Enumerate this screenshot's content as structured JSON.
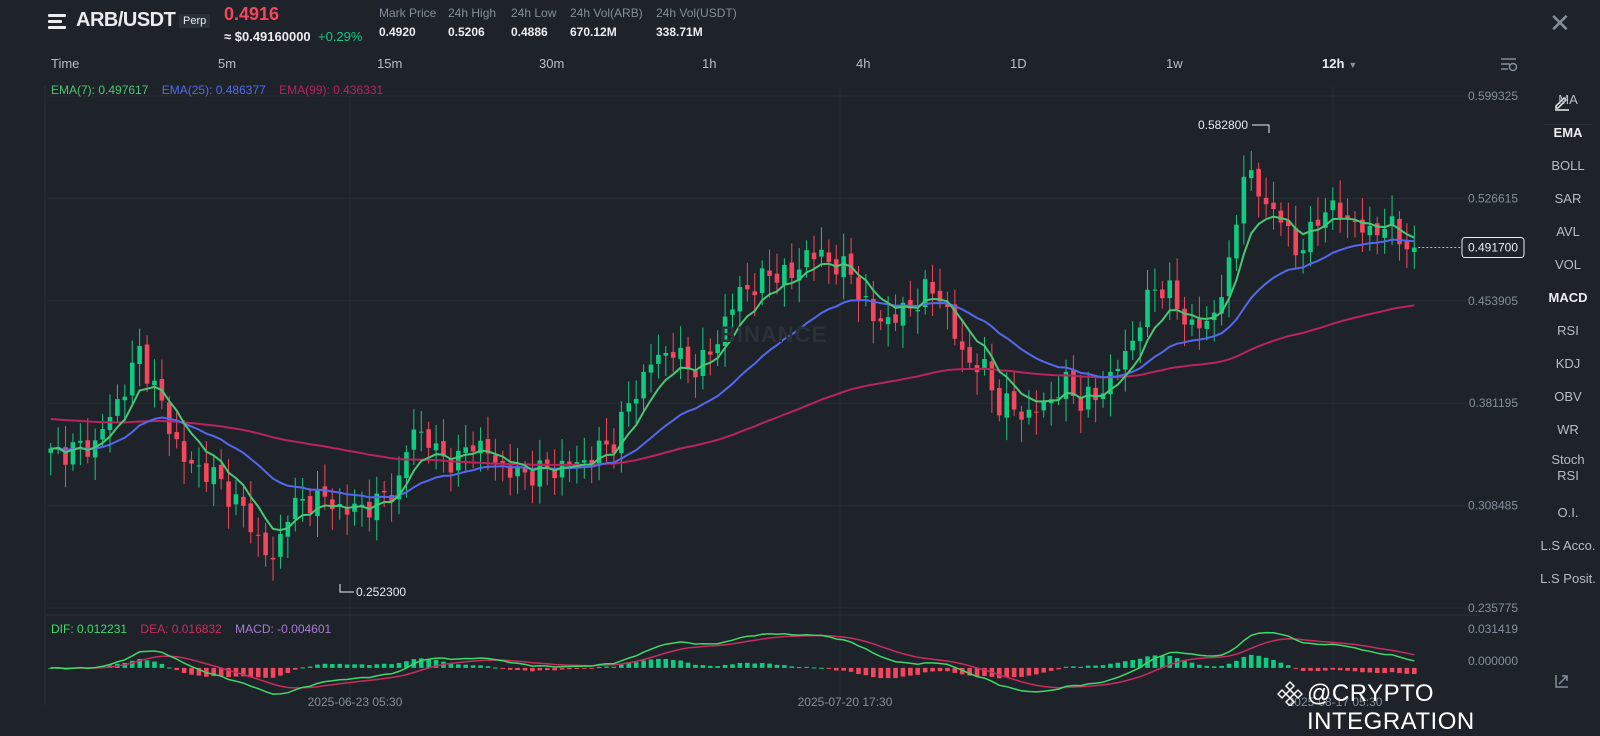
{
  "header": {
    "symbol": "ARB/USDT",
    "badge": "Perp",
    "last_price": "0.4916",
    "usd_price": "≈ $0.49160000",
    "change": "+0.29%",
    "stats": [
      {
        "label": "Mark Price",
        "value": "0.4920"
      },
      {
        "label": "24h High",
        "value": "0.5206"
      },
      {
        "label": "24h Low",
        "value": "0.4886"
      },
      {
        "label": "24h Vol(ARB)",
        "value": "670.12M"
      },
      {
        "label": "24h Vol(USDT)",
        "value": "338.71M"
      }
    ],
    "close_icon": "close-icon",
    "menu_icon": "menu-icon"
  },
  "intervals": {
    "time_label": "Time",
    "items": [
      "5m",
      "15m",
      "30m",
      "1h",
      "4h",
      "1D",
      "1w",
      "12h"
    ],
    "active": "12h",
    "settings_icon": "chart-settings-icon"
  },
  "indicators": {
    "ema7": "EMA(7): 0.497617",
    "ema25": "EMA(25): 0.486377",
    "ema99": "EMA(99): 0.436331",
    "dif": "DIF: 0.012231",
    "dea": "DEA: 0.016832",
    "macd": "MACD: -0.004601"
  },
  "price_axis": [
    "0.599325",
    "0.526615",
    "0.453905",
    "0.381195",
    "0.308485",
    "0.235775"
  ],
  "macd_axis": [
    "0.031419",
    "0.000000"
  ],
  "time_axis": [
    "2025-06-23 05:30",
    "2025-07-20 17:30",
    "2025-08-17 05:30"
  ],
  "annotations": {
    "high": "0.582800",
    "low": "0.252300",
    "current": "0.491700"
  },
  "toolbar": {
    "pencil_icon": "pencil-icon",
    "items": [
      "MA",
      "EMA",
      "BOLL",
      "SAR",
      "AVL",
      "VOL",
      "MACD",
      "RSI",
      "KDJ",
      "OBV",
      "WR",
      "Stoch RSI",
      "O.I.",
      "L.S Acco.",
      "L.S Posit."
    ],
    "active": [
      "EMA",
      "MACD"
    ]
  },
  "bg_watermark": "BINANCE",
  "watermark": "@CRYPTO INTEGRATION",
  "colors": {
    "up": "#0ecb81",
    "down": "#f6465d",
    "ema7": "#48c774",
    "ema25": "#5468ee",
    "ema99": "#b8245b",
    "dif": "#3fd86a",
    "dea": "#c92c60",
    "macd": "#a77cd3",
    "background": "#1e2329"
  },
  "chart_data": {
    "type": "candlestick",
    "ylim": [
      0.2358,
      0.5993
    ],
    "macd_ylim": [
      -0.02,
      0.0314
    ],
    "close_key_points": [
      [
        0,
        0.345
      ],
      [
        6,
        0.352
      ],
      [
        10,
        0.392
      ],
      [
        12,
        0.418
      ],
      [
        14,
        0.392
      ],
      [
        18,
        0.34
      ],
      [
        22,
        0.33
      ],
      [
        26,
        0.305
      ],
      [
        29,
        0.275
      ],
      [
        30,
        0.268
      ],
      [
        32,
        0.305
      ],
      [
        36,
        0.315
      ],
      [
        40,
        0.305
      ],
      [
        44,
        0.31
      ],
      [
        47,
        0.325
      ],
      [
        49,
        0.365
      ],
      [
        53,
        0.342
      ],
      [
        55,
        0.34
      ],
      [
        57,
        0.355
      ],
      [
        60,
        0.34
      ],
      [
        63,
        0.33
      ],
      [
        68,
        0.335
      ],
      [
        72,
        0.34
      ],
      [
        76,
        0.355
      ],
      [
        78,
        0.38
      ],
      [
        81,
        0.41
      ],
      [
        84,
        0.42
      ],
      [
        86,
        0.405
      ],
      [
        89,
        0.415
      ],
      [
        91,
        0.44
      ],
      [
        93,
        0.46
      ],
      [
        95,
        0.465
      ],
      [
        98,
        0.475
      ],
      [
        100,
        0.47
      ],
      [
        102,
        0.488
      ],
      [
        104,
        0.485
      ],
      [
        106,
        0.48
      ],
      [
        108,
        0.473
      ],
      [
        111,
        0.44
      ],
      [
        114,
        0.442
      ],
      [
        116,
        0.45
      ],
      [
        118,
        0.46
      ],
      [
        120,
        0.46
      ],
      [
        122,
        0.428
      ],
      [
        124,
        0.41
      ],
      [
        126,
        0.405
      ],
      [
        128,
        0.38
      ],
      [
        130,
        0.378
      ],
      [
        132,
        0.372
      ],
      [
        135,
        0.385
      ],
      [
        137,
        0.395
      ],
      [
        139,
        0.383
      ],
      [
        141,
        0.385
      ],
      [
        143,
        0.4
      ],
      [
        145,
        0.415
      ],
      [
        147,
        0.44
      ],
      [
        149,
        0.465
      ],
      [
        151,
        0.46
      ],
      [
        153,
        0.44
      ],
      [
        156,
        0.435
      ],
      [
        159,
        0.475
      ],
      [
        161,
        0.548
      ],
      [
        163,
        0.53
      ],
      [
        166,
        0.512
      ],
      [
        168,
        0.49
      ],
      [
        170,
        0.5
      ],
      [
        172,
        0.522
      ],
      [
        174,
        0.515
      ],
      [
        176,
        0.51
      ],
      [
        178,
        0.5
      ],
      [
        180,
        0.51
      ],
      [
        182,
        0.498
      ],
      [
        184,
        0.4917
      ]
    ]
  }
}
